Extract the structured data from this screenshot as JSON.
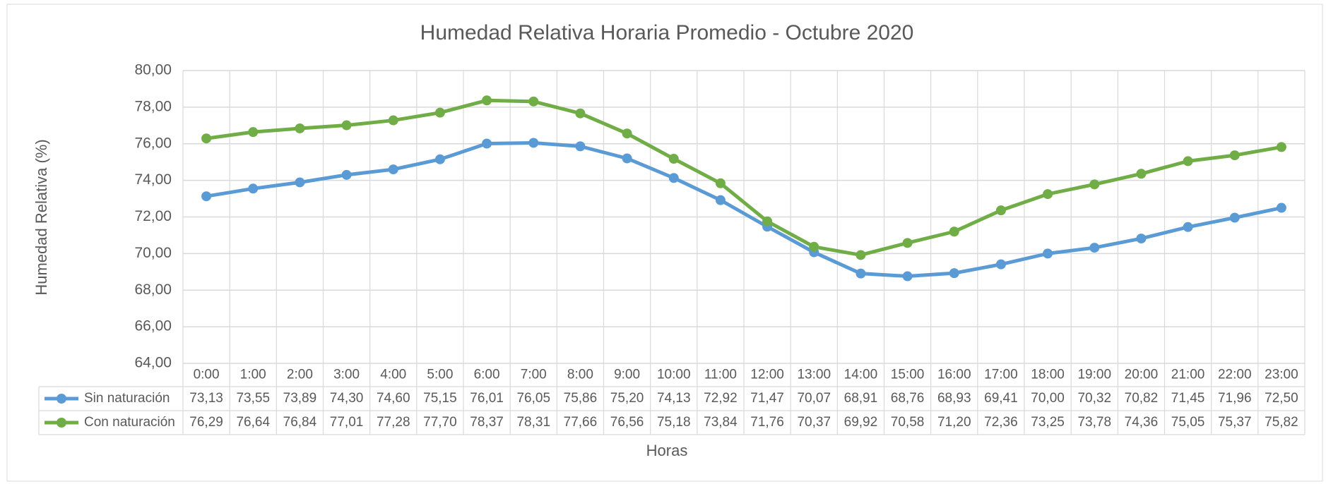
{
  "chart_data": {
    "type": "line",
    "title": "Humedad Relativa Horaria Promedio - Octubre 2020",
    "x_label": "Horas",
    "y_label": "Humedad Relativa (%)",
    "categories": [
      "0:00",
      "1:00",
      "2:00",
      "3:00",
      "4:00",
      "5:00",
      "6:00",
      "7:00",
      "8:00",
      "9:00",
      "10:00",
      "11:00",
      "12:00",
      "13:00",
      "14:00",
      "15:00",
      "16:00",
      "17:00",
      "18:00",
      "19:00",
      "20:00",
      "21:00",
      "22:00",
      "23:00"
    ],
    "series": [
      {
        "name": "Sin naturación",
        "color": "#5b9bd5",
        "values": [
          73.13,
          73.55,
          73.89,
          74.3,
          74.6,
          75.15,
          76.01,
          76.05,
          75.86,
          75.2,
          74.13,
          72.92,
          71.47,
          70.07,
          68.91,
          68.76,
          68.93,
          69.41,
          70.0,
          70.32,
          70.82,
          71.45,
          71.96,
          72.5
        ],
        "value_labels": [
          "73,13",
          "73,55",
          "73,89",
          "74,30",
          "74,60",
          "75,15",
          "76,01",
          "76,05",
          "75,86",
          "75,20",
          "74,13",
          "72,92",
          "71,47",
          "70,07",
          "68,91",
          "68,76",
          "68,93",
          "69,41",
          "70,00",
          "70,32",
          "70,82",
          "71,45",
          "71,96",
          "72,50"
        ]
      },
      {
        "name": "Con naturación",
        "color": "#70ad47",
        "values": [
          76.29,
          76.64,
          76.84,
          77.01,
          77.28,
          77.7,
          78.37,
          78.31,
          77.66,
          76.56,
          75.18,
          73.84,
          71.76,
          70.37,
          69.92,
          70.58,
          71.2,
          72.36,
          73.25,
          73.78,
          74.36,
          75.05,
          75.37,
          75.82
        ],
        "value_labels": [
          "76,29",
          "76,64",
          "76,84",
          "77,01",
          "77,28",
          "77,70",
          "78,37",
          "78,31",
          "77,66",
          "76,56",
          "75,18",
          "73,84",
          "71,76",
          "70,37",
          "69,92",
          "70,58",
          "71,20",
          "72,36",
          "73,25",
          "73,78",
          "74,36",
          "75,05",
          "75,37",
          "75,82"
        ]
      }
    ],
    "ylim": [
      64,
      80
    ],
    "yticks": [
      {
        "value": 64,
        "label": "64,00"
      },
      {
        "value": 66,
        "label": "66,00"
      },
      {
        "value": 68,
        "label": "68,00"
      },
      {
        "value": 70,
        "label": "70,00"
      },
      {
        "value": 72,
        "label": "72,00"
      },
      {
        "value": 74,
        "label": "74,00"
      },
      {
        "value": 76,
        "label": "76,00"
      },
      {
        "value": 78,
        "label": "78,00"
      },
      {
        "value": 80,
        "label": "80,00"
      }
    ],
    "grid": true
  }
}
